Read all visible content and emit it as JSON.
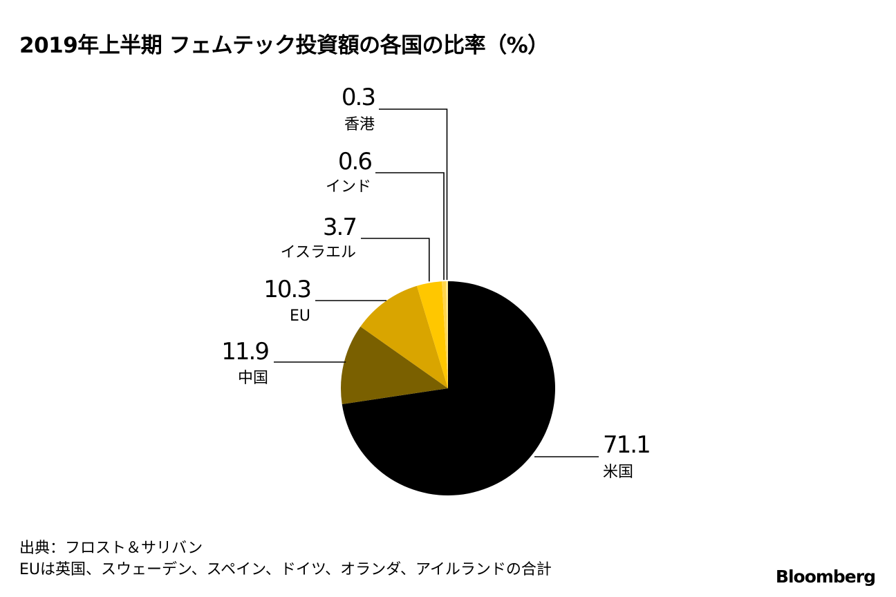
{
  "title": "2019年上半期 フェムテック投資額の各国の比率（%）",
  "chart_data": {
    "type": "pie",
    "title": "2019年上半期 フェムテック投資額の各国の比率（%）",
    "unit": "%",
    "slices": [
      {
        "label": "米国",
        "value": 71.1,
        "value_label": "71.1",
        "color": "#000000"
      },
      {
        "label": "中国",
        "value": 11.9,
        "value_label": "11.9",
        "color": "#7a6000"
      },
      {
        "label": "EU",
        "value": 10.3,
        "value_label": "10.3",
        "color": "#d9a500"
      },
      {
        "label": "イスラエル",
        "value": 3.7,
        "value_label": "3.7",
        "color": "#ffc700"
      },
      {
        "label": "インド",
        "value": 0.6,
        "value_label": "0.6",
        "color": "#ffd54a"
      },
      {
        "label": "香港",
        "value": 0.3,
        "value_label": "0.3",
        "color": "#ffe98a"
      }
    ]
  },
  "footer": {
    "source": "出典：フロスト＆サリバン",
    "note": "EUは英国、スウェーデン、スペイン、ドイツ、オランダ、アイルランドの合計"
  },
  "brand": "Bloomberg"
}
